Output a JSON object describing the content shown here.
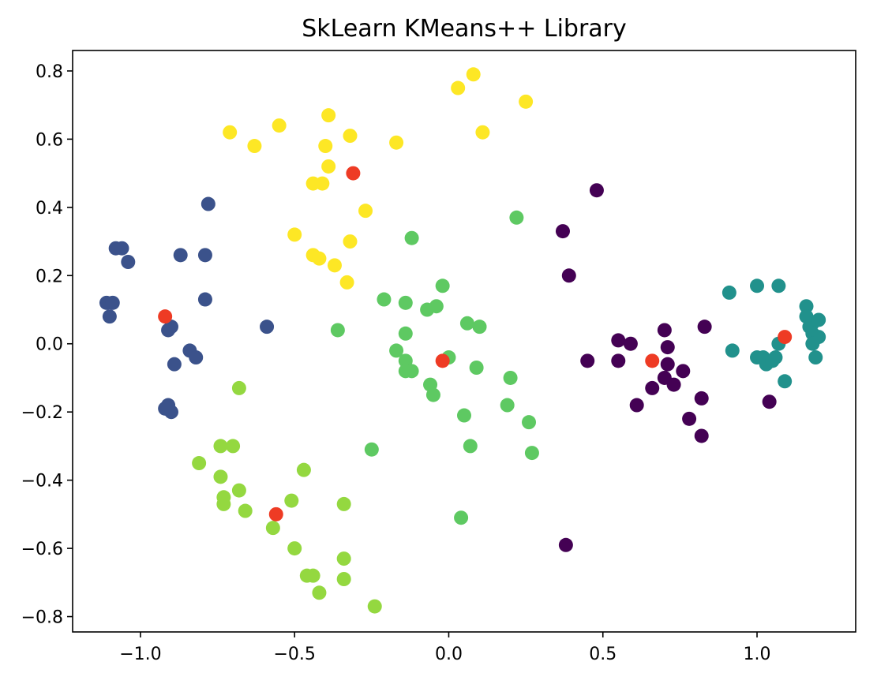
{
  "chart_data": {
    "type": "scatter",
    "title": "SkLearn KMeans++ Library",
    "xlabel": "",
    "ylabel": "",
    "xlim": [
      -1.22,
      1.32
    ],
    "ylim": [
      -0.845,
      0.86
    ],
    "xticks": [
      -1.0,
      -0.5,
      0.0,
      0.5,
      1.0
    ],
    "xtick_labels": [
      "−1.0",
      "−0.5",
      "0.0",
      "0.5",
      "1.0"
    ],
    "yticks": [
      0.8,
      0.6,
      0.4,
      0.2,
      0.0,
      -0.2,
      -0.4,
      -0.6,
      -0.8
    ],
    "ytick_labels": [
      "0.8",
      "0.6",
      "0.4",
      "0.2",
      "0.0",
      "−0.2",
      "−0.4",
      "−0.6",
      "−0.8"
    ],
    "grid": false,
    "series": [
      {
        "color": "#440154",
        "points": [
          [
            0.48,
            0.45
          ],
          [
            0.37,
            0.33
          ],
          [
            0.39,
            0.2
          ],
          [
            0.45,
            -0.05
          ],
          [
            0.55,
            0.01
          ],
          [
            0.55,
            -0.05
          ],
          [
            0.59,
            0.0
          ],
          [
            0.61,
            -0.18
          ],
          [
            0.66,
            -0.13
          ],
          [
            0.7,
            0.04
          ],
          [
            0.71,
            -0.01
          ],
          [
            0.71,
            -0.06
          ],
          [
            0.7,
            -0.1
          ],
          [
            0.73,
            -0.12
          ],
          [
            0.76,
            -0.08
          ],
          [
            0.78,
            -0.22
          ],
          [
            0.82,
            -0.16
          ],
          [
            0.83,
            0.05
          ],
          [
            0.82,
            -0.27
          ],
          [
            1.04,
            -0.17
          ],
          [
            0.38,
            -0.59
          ]
        ]
      },
      {
        "color": "#3b528b",
        "points": [
          [
            -0.78,
            0.41
          ],
          [
            -1.08,
            0.28
          ],
          [
            -1.06,
            0.28
          ],
          [
            -1.04,
            0.24
          ],
          [
            -0.87,
            0.26
          ],
          [
            -0.79,
            0.26
          ],
          [
            -1.11,
            0.12
          ],
          [
            -1.09,
            0.12
          ],
          [
            -1.1,
            0.08
          ],
          [
            -0.79,
            0.13
          ],
          [
            -0.9,
            0.05
          ],
          [
            -0.91,
            0.04
          ],
          [
            -0.84,
            -0.02
          ],
          [
            -0.82,
            -0.04
          ],
          [
            -0.89,
            -0.06
          ],
          [
            -0.59,
            0.05
          ],
          [
            -0.92,
            -0.19
          ],
          [
            -0.91,
            -0.18
          ],
          [
            -0.9,
            -0.2
          ]
        ]
      },
      {
        "color": "#21918c",
        "points": [
          [
            0.91,
            0.15
          ],
          [
            1.0,
            0.17
          ],
          [
            1.07,
            0.17
          ],
          [
            1.16,
            0.11
          ],
          [
            1.16,
            0.08
          ],
          [
            1.17,
            0.05
          ],
          [
            1.18,
            0.06
          ],
          [
            1.2,
            0.07
          ],
          [
            1.18,
            0.03
          ],
          [
            1.2,
            0.02
          ],
          [
            1.18,
            0.0
          ],
          [
            1.19,
            -0.04
          ],
          [
            0.92,
            -0.02
          ],
          [
            1.0,
            -0.04
          ],
          [
            1.02,
            -0.04
          ],
          [
            1.03,
            -0.06
          ],
          [
            1.05,
            -0.05
          ],
          [
            1.06,
            -0.04
          ],
          [
            1.07,
            0.0
          ],
          [
            1.09,
            -0.11
          ]
        ]
      },
      {
        "color": "#5ec962",
        "points": [
          [
            -0.21,
            0.13
          ],
          [
            -0.12,
            0.31
          ],
          [
            -0.14,
            0.12
          ],
          [
            -0.07,
            0.1
          ],
          [
            -0.04,
            0.11
          ],
          [
            -0.02,
            0.17
          ],
          [
            0.22,
            0.37
          ],
          [
            0.06,
            0.06
          ],
          [
            0.1,
            0.05
          ],
          [
            -0.36,
            0.04
          ],
          [
            -0.14,
            0.03
          ],
          [
            -0.17,
            -0.02
          ],
          [
            -0.14,
            -0.05
          ],
          [
            -0.14,
            -0.08
          ],
          [
            -0.12,
            -0.08
          ],
          [
            0.0,
            -0.04
          ],
          [
            0.09,
            -0.07
          ],
          [
            0.2,
            -0.1
          ],
          [
            -0.06,
            -0.12
          ],
          [
            -0.05,
            -0.15
          ],
          [
            0.05,
            -0.21
          ],
          [
            0.19,
            -0.18
          ],
          [
            0.26,
            -0.23
          ],
          [
            0.07,
            -0.3
          ],
          [
            0.27,
            -0.32
          ],
          [
            -0.25,
            -0.31
          ],
          [
            0.04,
            -0.51
          ]
        ]
      },
      {
        "color": "#94d840",
        "points": [
          [
            -0.68,
            -0.13
          ],
          [
            -0.74,
            -0.3
          ],
          [
            -0.7,
            -0.3
          ],
          [
            -0.81,
            -0.35
          ],
          [
            -0.74,
            -0.39
          ],
          [
            -0.68,
            -0.43
          ],
          [
            -0.73,
            -0.45
          ],
          [
            -0.73,
            -0.47
          ],
          [
            -0.66,
            -0.49
          ],
          [
            -0.47,
            -0.37
          ],
          [
            -0.51,
            -0.46
          ],
          [
            -0.34,
            -0.47
          ],
          [
            -0.57,
            -0.54
          ],
          [
            -0.5,
            -0.6
          ],
          [
            -0.34,
            -0.63
          ],
          [
            -0.46,
            -0.68
          ],
          [
            -0.44,
            -0.68
          ],
          [
            -0.34,
            -0.69
          ],
          [
            -0.42,
            -0.73
          ],
          [
            -0.24,
            -0.77
          ]
        ]
      },
      {
        "color": "#fde725",
        "points": [
          [
            0.03,
            0.75
          ],
          [
            0.08,
            0.79
          ],
          [
            0.25,
            0.71
          ],
          [
            -0.71,
            0.62
          ],
          [
            -0.63,
            0.58
          ],
          [
            -0.55,
            0.64
          ],
          [
            -0.39,
            0.67
          ],
          [
            -0.32,
            0.61
          ],
          [
            -0.4,
            0.58
          ],
          [
            0.11,
            0.62
          ],
          [
            -0.17,
            0.59
          ],
          [
            -0.39,
            0.52
          ],
          [
            -0.44,
            0.47
          ],
          [
            -0.41,
            0.47
          ],
          [
            -0.27,
            0.39
          ],
          [
            -0.5,
            0.32
          ],
          [
            -0.32,
            0.3
          ],
          [
            -0.44,
            0.26
          ],
          [
            -0.42,
            0.25
          ],
          [
            -0.37,
            0.23
          ],
          [
            -0.33,
            0.18
          ]
        ]
      }
    ],
    "centroids": {
      "color": "#ee3b24",
      "points": [
        [
          -0.31,
          0.5
        ],
        [
          -0.92,
          0.08
        ],
        [
          -0.02,
          -0.05
        ],
        [
          0.66,
          -0.05
        ],
        [
          1.09,
          0.02
        ],
        [
          -0.56,
          -0.5
        ]
      ]
    }
  }
}
